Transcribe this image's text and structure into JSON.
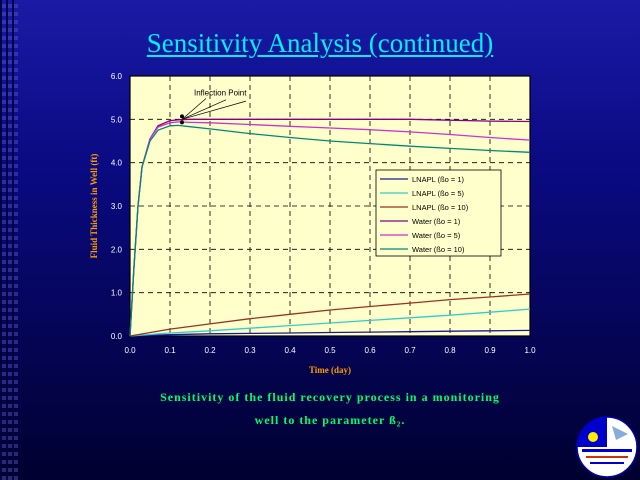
{
  "slide": {
    "title": "Sensitivity Analysis (continued)",
    "caption_line1": "Sensitivity of the fluid recovery process in a monitoring",
    "caption_line2": "well to the parameter ß₂."
  },
  "chart_data": {
    "type": "line",
    "title": "",
    "xlabel": "Time (day)",
    "ylabel": "Fluid Thickness in Well (ft)",
    "xlim": [
      0,
      1
    ],
    "ylim": [
      0,
      6
    ],
    "xticks": [
      "0.0",
      "0.1",
      "0.2",
      "0.3",
      "0.4",
      "0.5",
      "0.6",
      "0.7",
      "0.8",
      "0.9",
      "1.0"
    ],
    "yticks": [
      "0.0",
      "1.0",
      "2.0",
      "3.0",
      "4.0",
      "5.0",
      "6.0"
    ],
    "grid": true,
    "legend_position": "center-right",
    "annotation": "Inflection Point",
    "colors": {
      "plot_bg": "#ffffcc",
      "frame": "#000000",
      "axis_text": "#ffffff",
      "label_text": "#ff9900"
    },
    "series": [
      {
        "name": "LNAPL (ßo = 1)",
        "color": "#1a1a99",
        "x": [
          0,
          0.1,
          0.2,
          0.3,
          0.4,
          0.5,
          0.6,
          0.7,
          0.8,
          0.9,
          1.0
        ],
        "y": [
          0.0,
          0.03,
          0.05,
          0.06,
          0.07,
          0.08,
          0.09,
          0.1,
          0.11,
          0.12,
          0.13
        ]
      },
      {
        "name": "LNAPL (ßo = 5)",
        "color": "#33cccc",
        "x": [
          0,
          0.1,
          0.2,
          0.3,
          0.4,
          0.5,
          0.6,
          0.7,
          0.8,
          0.9,
          1.0
        ],
        "y": [
          0.0,
          0.07,
          0.12,
          0.18,
          0.24,
          0.3,
          0.36,
          0.42,
          0.48,
          0.55,
          0.62
        ]
      },
      {
        "name": "LNAPL (ßo = 10)",
        "color": "#993322",
        "x": [
          0,
          0.1,
          0.2,
          0.3,
          0.4,
          0.5,
          0.6,
          0.7,
          0.8,
          0.9,
          1.0
        ],
        "y": [
          0.0,
          0.16,
          0.28,
          0.4,
          0.5,
          0.6,
          0.68,
          0.76,
          0.84,
          0.9,
          0.97
        ]
      },
      {
        "name": "Water (ßo = 1)",
        "color": "#880088",
        "x": [
          0,
          0.01,
          0.02,
          0.03,
          0.05,
          0.07,
          0.1,
          0.12,
          0.15,
          0.2,
          0.3,
          0.4,
          0.5,
          0.6,
          0.7,
          0.8,
          0.9,
          1.0
        ],
        "y": [
          0,
          1.6,
          3.0,
          3.9,
          4.55,
          4.85,
          4.97,
          4.99,
          5.0,
          5.0,
          5.0,
          5.0,
          5.0,
          5.0,
          5.0,
          4.98,
          4.96,
          4.95
        ]
      },
      {
        "name": "Water (ßo = 5)",
        "color": "#cc33cc",
        "x": [
          0,
          0.01,
          0.02,
          0.03,
          0.05,
          0.07,
          0.1,
          0.12,
          0.15,
          0.2,
          0.3,
          0.4,
          0.5,
          0.6,
          0.7,
          0.8,
          0.9,
          1.0
        ],
        "y": [
          0,
          1.6,
          3.0,
          3.9,
          4.55,
          4.82,
          4.92,
          4.94,
          4.93,
          4.92,
          4.88,
          4.84,
          4.8,
          4.76,
          4.71,
          4.65,
          4.58,
          4.52
        ]
      },
      {
        "name": "Water (ßo = 10)",
        "color": "#008877",
        "x": [
          0,
          0.01,
          0.02,
          0.03,
          0.05,
          0.07,
          0.1,
          0.12,
          0.15,
          0.2,
          0.3,
          0.4,
          0.5,
          0.6,
          0.7,
          0.8,
          0.9,
          1.0
        ],
        "y": [
          0,
          1.6,
          3.0,
          3.9,
          4.5,
          4.75,
          4.85,
          4.86,
          4.83,
          4.78,
          4.67,
          4.58,
          4.5,
          4.44,
          4.38,
          4.33,
          4.28,
          4.24
        ]
      }
    ]
  }
}
